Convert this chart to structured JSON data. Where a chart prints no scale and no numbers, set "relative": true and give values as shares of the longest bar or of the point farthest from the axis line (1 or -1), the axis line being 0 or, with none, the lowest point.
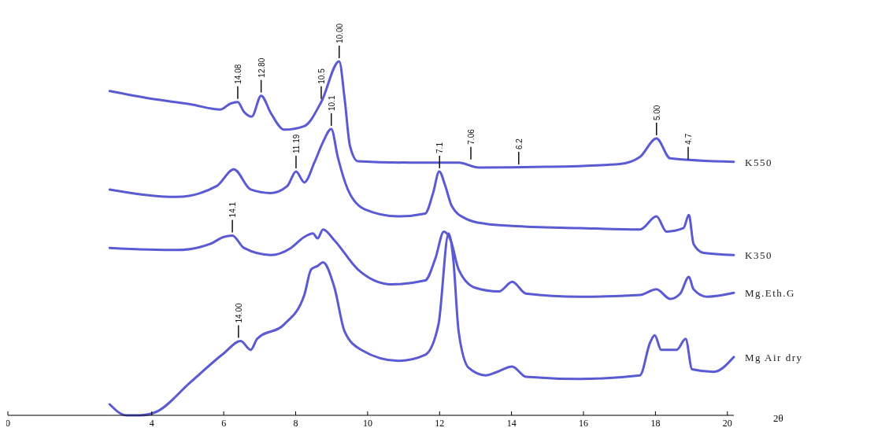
{
  "chart_data": {
    "type": "line",
    "relative": true,
    "xlabel": "2θ",
    "tick_labels": "x",
    "marker": "none",
    "line_style": "solid",
    "legend": false,
    "xlim": [
      0,
      20.18
    ],
    "xticks": [
      0,
      4,
      6,
      8,
      10,
      12,
      14,
      16,
      18,
      20
    ],
    "series": [
      {
        "name": "K550",
        "color": "#5a5ad2",
        "x": [
          2.83,
          3.95,
          5.07,
          5.91,
          6.19,
          6.39,
          6.56,
          6.78,
          7.04,
          7.31,
          7.68,
          8.24,
          8.71,
          9.21,
          9.36,
          9.51,
          9.73,
          11.22,
          12.53,
          13.09,
          14.96,
          17.01,
          17.57,
          18.03,
          18.41,
          20.18
        ],
        "values": [
          0.916,
          0.895,
          0.879,
          0.864,
          0.881,
          0.885,
          0.858,
          0.844,
          0.903,
          0.854,
          0.807,
          0.817,
          0.885,
          1.0,
          0.895,
          0.761,
          0.718,
          0.714,
          0.714,
          0.7,
          0.702,
          0.71,
          0.73,
          0.782,
          0.726,
          0.716
        ]
      },
      {
        "name": "K350",
        "color": "#5a5ad2",
        "x": [
          2.83,
          4.69,
          5.81,
          6.28,
          6.75,
          7.31,
          7.77,
          8.01,
          8.24,
          8.52,
          8.76,
          8.99,
          9.17,
          9.45,
          9.92,
          10.85,
          11.6,
          11.82,
          11.99,
          12.16,
          12.34,
          12.72,
          13.28,
          14.02,
          15.89,
          17.57,
          18.03,
          18.31,
          18.78,
          18.93,
          19.06,
          19.34,
          20.18
        ],
        "values": [
          0.638,
          0.617,
          0.648,
          0.695,
          0.638,
          0.628,
          0.648,
          0.689,
          0.658,
          0.714,
          0.772,
          0.809,
          0.73,
          0.638,
          0.582,
          0.562,
          0.57,
          0.628,
          0.689,
          0.648,
          0.591,
          0.556,
          0.541,
          0.535,
          0.529,
          0.525,
          0.562,
          0.519,
          0.529,
          0.566,
          0.484,
          0.459,
          0.453
        ]
      },
      {
        "name": "Mg.Eth.G",
        "color": "#5a5ad2",
        "x": [
          2.83,
          4.69,
          5.62,
          6.0,
          6.24,
          6.56,
          7.31,
          7.87,
          8.24,
          8.48,
          8.61,
          8.76,
          9.08,
          9.73,
          10.66,
          11.6,
          11.88,
          12.12,
          12.31,
          12.53,
          13.0,
          13.65,
          14.02,
          14.4,
          15.89,
          17.57,
          18.03,
          18.41,
          18.69,
          18.93,
          19.06,
          19.43,
          20.18
        ],
        "values": [
          0.473,
          0.467,
          0.484,
          0.504,
          0.508,
          0.473,
          0.453,
          0.473,
          0.504,
          0.514,
          0.5,
          0.525,
          0.494,
          0.412,
          0.37,
          0.381,
          0.442,
          0.519,
          0.494,
          0.412,
          0.36,
          0.35,
          0.377,
          0.344,
          0.335,
          0.34,
          0.356,
          0.329,
          0.344,
          0.391,
          0.356,
          0.335,
          0.346
        ]
      },
      {
        "name": "Mg Air dry",
        "color": "#5a5ad2",
        "x": [
          2.83,
          3.29,
          3.67,
          4.13,
          5.07,
          6.0,
          6.47,
          6.75,
          6.93,
          7.68,
          8.24,
          8.43,
          8.61,
          8.76,
          9.08,
          9.36,
          9.82,
          10.85,
          11.6,
          11.97,
          12.25,
          12.38,
          12.53,
          12.81,
          13.28,
          13.56,
          14.02,
          14.4,
          15.89,
          17.57,
          17.85,
          17.98,
          18.16,
          18.59,
          18.84,
          19.02,
          19.62,
          20.18
        ],
        "values": [
          0.031,
          0.0,
          0.0,
          0.01,
          0.093,
          0.175,
          0.21,
          0.185,
          0.216,
          0.257,
          0.34,
          0.412,
          0.422,
          0.432,
          0.36,
          0.237,
          0.185,
          0.154,
          0.171,
          0.257,
          0.514,
          0.442,
          0.237,
          0.134,
          0.113,
          0.121,
          0.138,
          0.109,
          0.103,
          0.113,
          0.205,
          0.226,
          0.185,
          0.185,
          0.216,
          0.13,
          0.123,
          0.165
        ]
      }
    ],
    "annotations": [
      {
        "text": "14.08",
        "x": 6.39,
        "y": 0.885
      },
      {
        "text": "12.80",
        "x": 7.04,
        "y": 0.903
      },
      {
        "text": "10.5",
        "x": 8.71,
        "y": 0.885
      },
      {
        "text": "10.00",
        "x": 9.21,
        "y": 1.0
      },
      {
        "text": "11.19",
        "x": 8.01,
        "y": 0.689
      },
      {
        "text": "10.1",
        "x": 8.99,
        "y": 0.809
      },
      {
        "text": "7.06",
        "x": 12.87,
        "y": 0.714
      },
      {
        "text": "6.2",
        "x": 14.2,
        "y": 0.7
      },
      {
        "text": "5.00",
        "x": 18.03,
        "y": 0.782
      },
      {
        "text": "4.7",
        "x": 18.91,
        "y": 0.714
      },
      {
        "text": "14.1",
        "x": 6.24,
        "y": 0.508
      },
      {
        "text": "14.00",
        "x": 6.41,
        "y": 0.21
      },
      {
        "text": "7.1",
        "x": 12.0,
        "y": 0.689
      }
    ]
  }
}
